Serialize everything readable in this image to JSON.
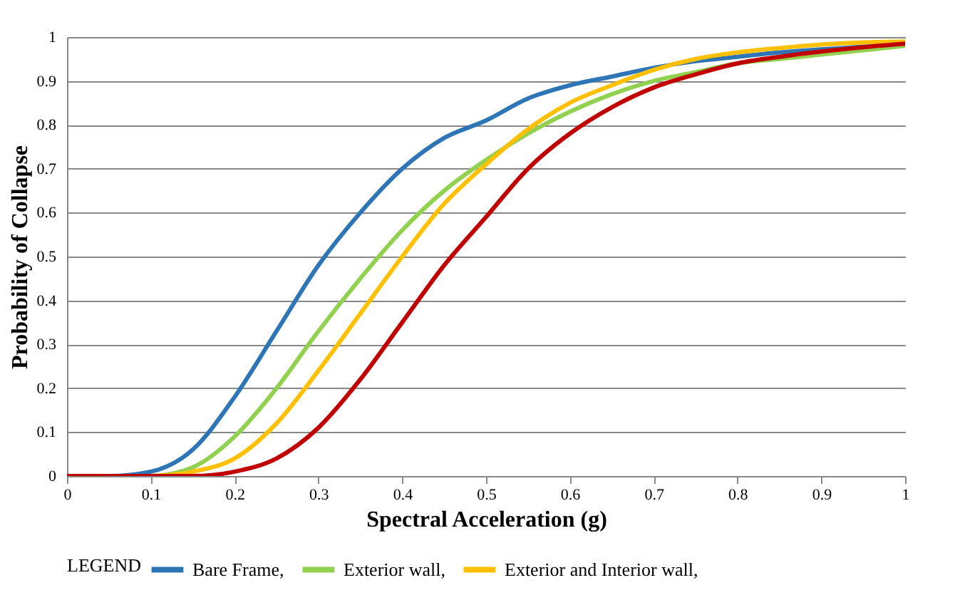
{
  "chart_data": {
    "type": "line",
    "xlabel": "Spectral Acceleration (g)",
    "ylabel": "Probability of Collapse",
    "legend_title": "LEGEND",
    "legend": "bottom",
    "grid": "y",
    "marker": "none",
    "line_style": "solid",
    "x": [
      0,
      0.05,
      0.1,
      0.15,
      0.2,
      0.25,
      0.3,
      0.35,
      0.4,
      0.45,
      0.5,
      0.55,
      0.6,
      0.65,
      0.7,
      0.75,
      0.8,
      0.85,
      0.9,
      0.95,
      1
    ],
    "xlim": [
      0,
      1
    ],
    "xticks": [
      0,
      0.1,
      0.2,
      0.3,
      0.4,
      0.5,
      0.6,
      0.7,
      0.8,
      0.9,
      1
    ],
    "ylim": [
      0,
      1
    ],
    "yticks": [
      0,
      0.1,
      0.2,
      0.3,
      0.4,
      0.5,
      0.6,
      0.7,
      0.8,
      0.9,
      1
    ],
    "series": [
      {
        "name": "Bare Frame,",
        "color": "#2e75b6",
        "values": [
          0,
          0,
          0.01,
          0.06,
          0.18,
          0.33,
          0.48,
          0.6,
          0.7,
          0.77,
          0.81,
          0.86,
          0.89,
          0.91,
          0.93,
          0.945,
          0.955,
          0.965,
          0.972,
          0.978,
          0.985
        ]
      },
      {
        "name": "Exterior wall,",
        "color": "#92d050",
        "values": [
          0,
          0,
          0,
          0.02,
          0.09,
          0.2,
          0.33,
          0.45,
          0.56,
          0.65,
          0.72,
          0.78,
          0.83,
          0.87,
          0.9,
          0.92,
          0.94,
          0.95,
          0.96,
          0.97,
          0.98
        ]
      },
      {
        "name": "Exterior and Interior wall,",
        "color": "#ffc000",
        "values": [
          0,
          0,
          0,
          0.01,
          0.04,
          0.12,
          0.24,
          0.37,
          0.5,
          0.62,
          0.71,
          0.79,
          0.85,
          0.89,
          0.925,
          0.95,
          0.965,
          0.975,
          0.983,
          0.988,
          0.99
        ]
      },
      {
        "color": "#c00000",
        "values": [
          0,
          0,
          0,
          0,
          0.01,
          0.04,
          0.11,
          0.22,
          0.35,
          0.48,
          0.59,
          0.7,
          0.78,
          0.84,
          0.885,
          0.915,
          0.94,
          0.955,
          0.967,
          0.977,
          0.985
        ]
      }
    ]
  }
}
